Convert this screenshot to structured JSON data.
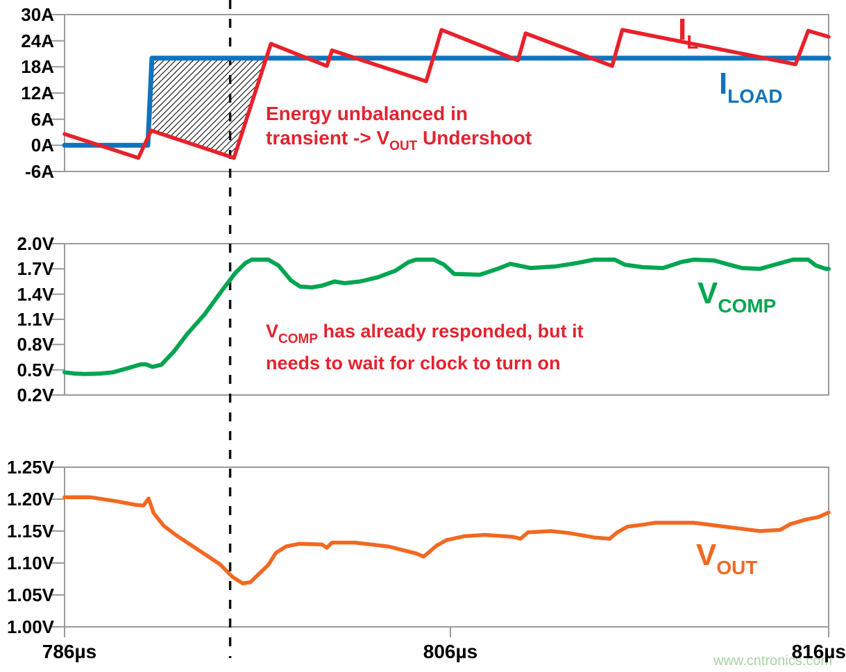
{
  "watermark": "www.cntronics.com",
  "x_axis": {
    "tick_labels": [
      "786µs",
      "806µs",
      "816µs"
    ],
    "dashed_marker_us": 792.5
  },
  "chart_data": [
    {
      "type": "line",
      "name": "inductor-and-load-current",
      "y_unit": "A",
      "ylim": [
        -6,
        30
      ],
      "x_range_us": [
        786,
        816
      ],
      "grid": false,
      "y_ticks": [
        "30A",
        "24A",
        "18A",
        "12A",
        "6A",
        "0A",
        "-6A"
      ],
      "series": [
        {
          "name": "I_LOAD",
          "color": "#1273bc",
          "width": 7,
          "label": {
            "main": "I",
            "sub": "LOAD"
          },
          "points": [
            [
              786.0,
              0
            ],
            [
              789.27,
              0
            ],
            [
              789.43,
              20
            ],
            [
              816.0,
              20
            ]
          ]
        },
        {
          "name": "I_L",
          "color": "#e8212b",
          "width": 5.5,
          "label": {
            "main": "I",
            "sub": "L"
          },
          "points": [
            [
              786.0,
              2.6
            ],
            [
              788.9,
              -2.9
            ],
            [
              789.4,
              3.4
            ],
            [
              792.65,
              -2.9
            ],
            [
              794.1,
              23.3
            ],
            [
              796.3,
              18.2
            ],
            [
              796.5,
              21.8
            ],
            [
              800.2,
              14.7
            ],
            [
              800.8,
              26.5
            ],
            [
              803.8,
              19.5
            ],
            [
              804.1,
              25.7
            ],
            [
              807.5,
              18.2
            ],
            [
              807.9,
              26.5
            ],
            [
              814.7,
              18.6
            ],
            [
              815.2,
              26.3
            ],
            [
              816.0,
              24.9
            ]
          ]
        }
      ],
      "undershoot_region": [
        [
          789.43,
          20
        ],
        [
          793.92,
          20
        ],
        [
          792.65,
          -2.9
        ],
        [
          789.45,
          3.4
        ]
      ],
      "annotation": {
        "line1": "Energy unbalanced in",
        "line2_pre": "transient -> V",
        "line2_sub": "OUT",
        "line2_post": " Undershoot"
      }
    },
    {
      "type": "line",
      "name": "comp-voltage",
      "y_unit": "V",
      "ylim": [
        0.2,
        2.0
      ],
      "x_range_us": [
        786,
        816
      ],
      "grid": false,
      "y_ticks": [
        "2.0V",
        "1.7V",
        "1.4V",
        "1.1V",
        "0.8V",
        "0.5V",
        "0.2V"
      ],
      "series": [
        {
          "name": "V_COMP",
          "color": "#00a551",
          "width": 6,
          "label": {
            "main": "V",
            "sub": "COMP"
          },
          "points": [
            [
              786.0,
              0.47
            ],
            [
              786.4,
              0.455
            ],
            [
              786.8,
              0.45
            ],
            [
              787.4,
              0.455
            ],
            [
              787.9,
              0.47
            ],
            [
              788.5,
              0.52
            ],
            [
              789.0,
              0.565
            ],
            [
              789.2,
              0.565
            ],
            [
              789.45,
              0.535
            ],
            [
              789.8,
              0.56
            ],
            [
              790.3,
              0.72
            ],
            [
              790.8,
              0.92
            ],
            [
              791.5,
              1.16
            ],
            [
              792.2,
              1.45
            ],
            [
              792.7,
              1.65
            ],
            [
              793.1,
              1.77
            ],
            [
              793.35,
              1.81
            ],
            [
              794.0,
              1.81
            ],
            [
              794.4,
              1.74
            ],
            [
              794.9,
              1.56
            ],
            [
              795.25,
              1.49
            ],
            [
              795.7,
              1.48
            ],
            [
              796.1,
              1.5
            ],
            [
              796.6,
              1.55
            ],
            [
              797.0,
              1.53
            ],
            [
              797.6,
              1.55
            ],
            [
              798.3,
              1.6
            ],
            [
              799.0,
              1.68
            ],
            [
              799.5,
              1.78
            ],
            [
              799.8,
              1.81
            ],
            [
              800.5,
              1.81
            ],
            [
              800.9,
              1.75
            ],
            [
              801.3,
              1.64
            ],
            [
              802.3,
              1.63
            ],
            [
              803.0,
              1.7
            ],
            [
              803.5,
              1.76
            ],
            [
              804.3,
              1.71
            ],
            [
              805.3,
              1.73
            ],
            [
              806.1,
              1.77
            ],
            [
              806.8,
              1.81
            ],
            [
              807.6,
              1.81
            ],
            [
              808.0,
              1.75
            ],
            [
              808.7,
              1.72
            ],
            [
              809.5,
              1.71
            ],
            [
              810.2,
              1.78
            ],
            [
              810.7,
              1.81
            ],
            [
              811.5,
              1.8
            ],
            [
              812.1,
              1.75
            ],
            [
              812.6,
              1.71
            ],
            [
              813.3,
              1.7
            ],
            [
              814.0,
              1.76
            ],
            [
              814.6,
              1.81
            ],
            [
              815.2,
              1.81
            ],
            [
              815.5,
              1.74
            ],
            [
              815.9,
              1.7
            ],
            [
              816.0,
              1.7
            ]
          ]
        }
      ],
      "annotation": {
        "line1_pre": "V",
        "line1_sub": "COMP",
        "line1_post": " has already responded, but it",
        "line2": "needs to wait for clock to turn on"
      }
    },
    {
      "type": "line",
      "name": "output-voltage",
      "y_unit": "V",
      "ylim": [
        1.0,
        1.25
      ],
      "x_range_us": [
        786,
        816
      ],
      "grid": false,
      "y_ticks": [
        "1.25V",
        "1.20V",
        "1.15V",
        "1.10V",
        "1.05V",
        "1.00V"
      ],
      "series": [
        {
          "name": "V_OUT",
          "color": "#f26822",
          "width": 5.5,
          "label": {
            "main": "V",
            "sub": "OUT"
          },
          "points": [
            [
              786.0,
              1.203
            ],
            [
              787.0,
              1.203
            ],
            [
              788.0,
              1.197
            ],
            [
              788.8,
              1.191
            ],
            [
              789.1,
              1.19
            ],
            [
              789.3,
              1.201
            ],
            [
              789.5,
              1.178
            ],
            [
              789.9,
              1.158
            ],
            [
              790.4,
              1.143
            ],
            [
              791.2,
              1.122
            ],
            [
              792.1,
              1.098
            ],
            [
              792.6,
              1.078
            ],
            [
              793.0,
              1.068
            ],
            [
              793.3,
              1.07
            ],
            [
              793.5,
              1.078
            ],
            [
              794.0,
              1.097
            ],
            [
              794.3,
              1.116
            ],
            [
              794.7,
              1.126
            ],
            [
              795.2,
              1.13
            ],
            [
              796.1,
              1.129
            ],
            [
              796.3,
              1.124
            ],
            [
              796.5,
              1.132
            ],
            [
              797.4,
              1.132
            ],
            [
              798.7,
              1.126
            ],
            [
              799.8,
              1.115
            ],
            [
              800.1,
              1.11
            ],
            [
              800.6,
              1.127
            ],
            [
              801.0,
              1.136
            ],
            [
              801.7,
              1.142
            ],
            [
              802.5,
              1.144
            ],
            [
              803.6,
              1.141
            ],
            [
              803.9,
              1.138
            ],
            [
              804.2,
              1.148
            ],
            [
              805.1,
              1.15
            ],
            [
              805.8,
              1.147
            ],
            [
              806.8,
              1.14
            ],
            [
              807.4,
              1.138
            ],
            [
              807.7,
              1.148
            ],
            [
              808.1,
              1.157
            ],
            [
              808.7,
              1.16
            ],
            [
              809.2,
              1.163
            ],
            [
              810.7,
              1.163
            ],
            [
              811.7,
              1.158
            ],
            [
              812.9,
              1.152
            ],
            [
              813.3,
              1.15
            ],
            [
              814.1,
              1.152
            ],
            [
              814.5,
              1.161
            ],
            [
              815.1,
              1.168
            ],
            [
              815.6,
              1.172
            ],
            [
              816.0,
              1.179
            ]
          ]
        }
      ]
    }
  ]
}
